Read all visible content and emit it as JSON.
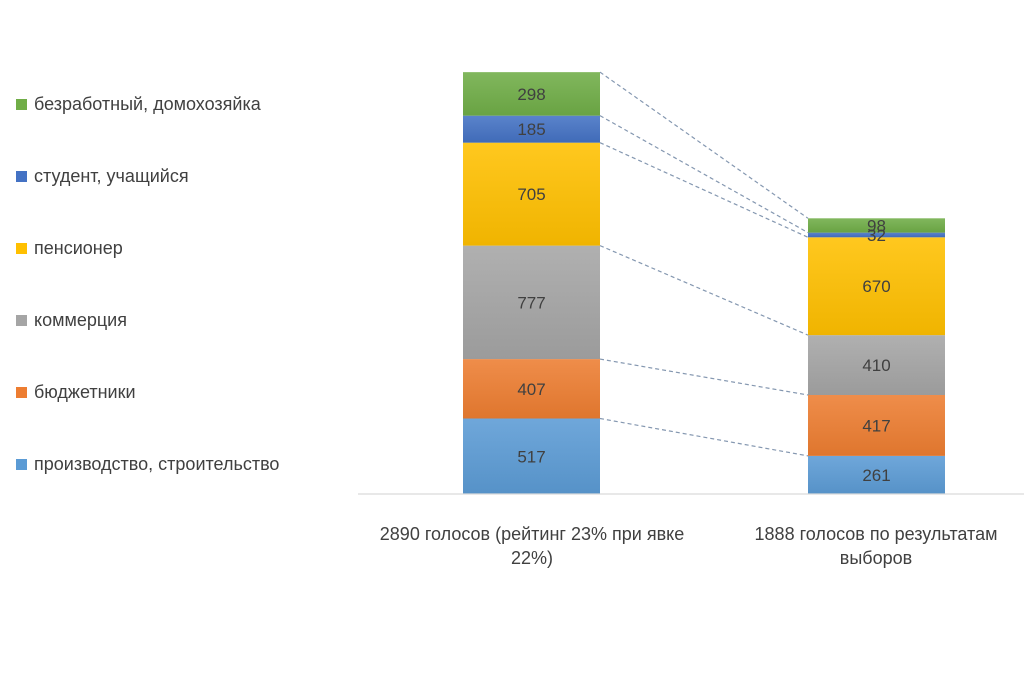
{
  "chart_data": {
    "type": "bar",
    "stacked": true,
    "categories": [
      "2890  голосов (рейтинг 23% при явке 22%)",
      "1888  голосов по результатам выборов"
    ],
    "series": [
      {
        "name": "производство,  строительство",
        "color": "#5B9BD5",
        "values": [
          517,
          261
        ]
      },
      {
        "name": "бюджетники",
        "color": "#ED7D31",
        "values": [
          407,
          417
        ]
      },
      {
        "name": "коммерция",
        "color": "#A5A5A5",
        "values": [
          777,
          410
        ]
      },
      {
        "name": "пенсионер",
        "color": "#FFC000",
        "values": [
          705,
          670
        ]
      },
      {
        "name": "студент, учащийся",
        "color": "#4472C4",
        "values": [
          185,
          32
        ]
      },
      {
        "name": "безработный, домохозяйка",
        "color": "#70AD47",
        "values": [
          298,
          98
        ]
      }
    ],
    "ylim": [
      0,
      2900
    ],
    "grid": false,
    "series_lines": true,
    "legend_position": "left"
  }
}
